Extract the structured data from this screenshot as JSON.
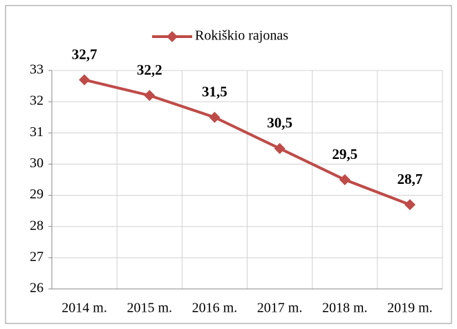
{
  "chart_data": {
    "type": "line",
    "categories": [
      "2014 m.",
      "2015 m.",
      "2016 m.",
      "2017 m.",
      "2018 m.",
      "2019 m."
    ],
    "series": [
      {
        "name": "Rokiškio rajonas",
        "color": "#be4b48",
        "values": [
          32.7,
          32.2,
          31.5,
          30.5,
          29.5,
          28.7
        ],
        "value_labels": [
          "32,7",
          "32,2",
          "31,5",
          "30,5",
          "29,5",
          "28,7"
        ]
      }
    ],
    "ylim": [
      26,
      33
    ],
    "yticks": [
      26,
      27,
      28,
      29,
      30,
      31,
      32,
      33
    ],
    "grid": true,
    "legend": "top"
  }
}
